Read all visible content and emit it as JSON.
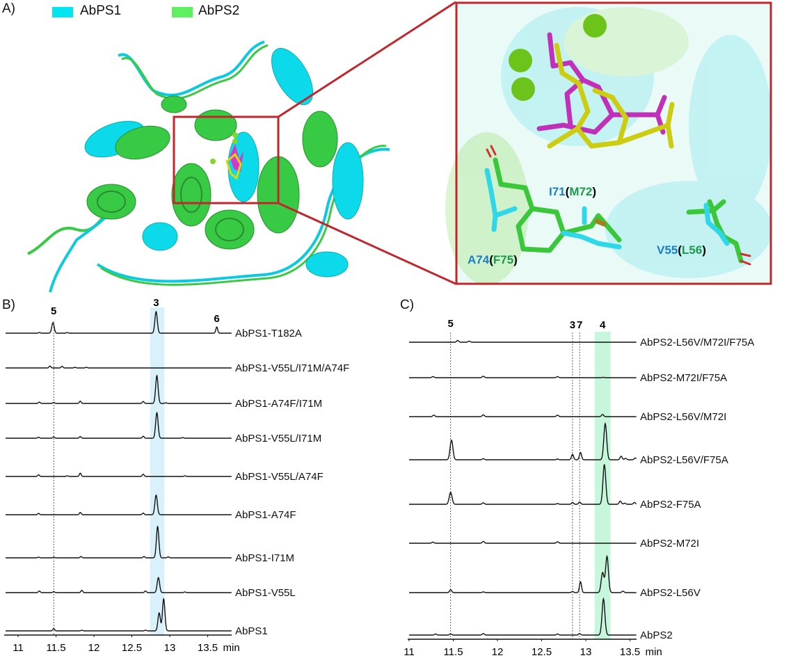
{
  "panel_a": {
    "label": "A)",
    "legend": [
      {
        "name": "AbPS1",
        "color": "#00e5f0"
      },
      {
        "name": "AbPS2",
        "color": "#5ef060"
      }
    ],
    "inset_labels": [
      {
        "first": "I71",
        "open": "(",
        "second": "M72",
        "close": ")"
      },
      {
        "first": "A74",
        "open": "(",
        "second": "F75",
        "close": ")"
      },
      {
        "first": "V55",
        "open": "(",
        "second": "L56",
        "close": ")"
      }
    ],
    "colors": {
      "abps1": "#00d8e8",
      "abps2": "#2ec83a",
      "zoom_box": "#c0272d",
      "ligand_1": "#d62ec8",
      "ligand_2": "#d8d800",
      "ion": "#7ed321",
      "label_blue": "#1a7fc9",
      "label_green": "#1a9a4a"
    }
  },
  "chart_data": [
    {
      "panel_label": "B)",
      "type": "line",
      "xlabel": "min",
      "xlim": [
        10.8,
        13.8
      ],
      "xticks": [
        "11",
        "11.5",
        "12",
        "12.5",
        "13",
        "13.5"
      ],
      "highlight": {
        "range": [
          12.74,
          12.93
        ],
        "color": "#d9f1fb"
      },
      "markers": [
        {
          "label": "5",
          "x": 11.47,
          "dashed": true
        },
        {
          "label": "3",
          "x": 12.82,
          "dashed": false
        },
        {
          "label": "6",
          "x": 13.62,
          "dashed": false
        }
      ],
      "series": [
        {
          "name": "AbPS1-T182A",
          "peaks": [
            [
              11.28,
              0.02
            ],
            [
              11.46,
              0.32
            ],
            [
              11.65,
              0.02
            ],
            [
              12.82,
              0.66
            ],
            [
              13.62,
              0.19
            ]
          ]
        },
        {
          "name": "AbPS1-V55L/I71M/A74F",
          "peaks": [
            [
              11.42,
              0.06
            ],
            [
              11.58,
              0.05
            ],
            [
              11.75,
              0.02
            ],
            [
              11.9,
              0.02
            ]
          ]
        },
        {
          "name": "AbPS1-A74F/I71M",
          "peaks": [
            [
              11.28,
              0.04
            ],
            [
              11.47,
              0.03
            ],
            [
              11.82,
              0.07
            ],
            [
              12.65,
              0.06
            ],
            [
              12.83,
              0.85
            ],
            [
              12.95,
              0.02
            ]
          ]
        },
        {
          "name": "AbPS1-V55L/I71M",
          "peaks": [
            [
              11.27,
              0.03
            ],
            [
              11.47,
              0.04
            ],
            [
              11.82,
              0.05
            ],
            [
              12.65,
              0.06
            ],
            [
              12.83,
              0.78
            ],
            [
              13.17,
              0.02
            ]
          ]
        },
        {
          "name": "AbPS1-V55L/A74F",
          "peaks": [
            [
              11.27,
              0.05
            ],
            [
              11.65,
              0.02
            ],
            [
              11.82,
              0.1
            ],
            [
              12.65,
              0.07
            ],
            [
              13.2,
              0.02
            ]
          ]
        },
        {
          "name": "AbPS1-A74F",
          "peaks": [
            [
              11.27,
              0.04
            ],
            [
              11.82,
              0.07
            ],
            [
              12.65,
              0.05
            ],
            [
              12.82,
              0.6
            ]
          ]
        },
        {
          "name": "AbPS1-I71M",
          "peaks": [
            [
              11.27,
              0.02
            ],
            [
              11.47,
              0.02
            ],
            [
              11.83,
              0.04
            ],
            [
              12.66,
              0.04
            ],
            [
              12.84,
              0.96
            ],
            [
              12.98,
              0.03
            ]
          ]
        },
        {
          "name": "AbPS1-V55L",
          "peaks": [
            [
              11.28,
              0.05
            ],
            [
              11.47,
              0.03
            ],
            [
              11.84,
              0.07
            ],
            [
              12.68,
              0.05
            ],
            [
              12.85,
              0.46
            ],
            [
              13.2,
              0.02
            ]
          ]
        },
        {
          "name": "AbPS1",
          "peaks": [
            [
              11.47,
              0.07
            ],
            [
              11.84,
              0.02
            ],
            [
              12.68,
              0.02
            ],
            [
              12.86,
              0.55
            ],
            [
              12.92,
              0.98
            ]
          ]
        }
      ]
    },
    {
      "panel_label": "C)",
      "type": "line",
      "xlabel": "min",
      "xlim": [
        10.98,
        13.58
      ],
      "xticks": [
        "11",
        "11.5",
        "12",
        "12.5",
        "13",
        "13.5"
      ],
      "highlight": {
        "range": [
          13.1,
          13.28
        ],
        "color": "#c6f7dc"
      },
      "markers": [
        {
          "label": "5",
          "x": 11.47,
          "dashed": true
        },
        {
          "label": "3",
          "x": 12.85,
          "dashed": true
        },
        {
          "label": "7",
          "x": 12.93,
          "dashed": true
        },
        {
          "label": "4",
          "x": 13.19,
          "dashed": false
        }
      ],
      "series": [
        {
          "name": "AbPS2-L56V/M72I/F75A",
          "peaks": [
            [
              11.55,
              0.05
            ],
            [
              11.68,
              0.03
            ]
          ]
        },
        {
          "name": "AbPS2-M72I/F75A",
          "peaks": [
            [
              11.27,
              0.03
            ],
            [
              11.84,
              0.04
            ],
            [
              12.68,
              0.03
            ],
            [
              13.2,
              0.01
            ]
          ]
        },
        {
          "name": "AbPS2-L56V/M72I",
          "peaks": [
            [
              11.28,
              0.04
            ],
            [
              11.84,
              0.05
            ],
            [
              12.68,
              0.04
            ],
            [
              13.19,
              0.06
            ]
          ]
        },
        {
          "name": "AbPS2-L56V/F75A",
          "peaks": [
            [
              11.48,
              0.54
            ],
            [
              11.84,
              0.03
            ],
            [
              12.68,
              0.02
            ],
            [
              12.85,
              0.15
            ],
            [
              12.94,
              0.2
            ],
            [
              13.22,
              1.0
            ],
            [
              13.4,
              0.1
            ],
            [
              13.45,
              0.04
            ],
            [
              13.56,
              0.05
            ]
          ]
        },
        {
          "name": "AbPS2-F75A",
          "peaks": [
            [
              11.47,
              0.33
            ],
            [
              11.84,
              0.04
            ],
            [
              12.68,
              0.02
            ],
            [
              12.85,
              0.05
            ],
            [
              12.93,
              0.06
            ],
            [
              13.21,
              1.1
            ],
            [
              13.39,
              0.09
            ],
            [
              13.44,
              0.03
            ],
            [
              13.55,
              0.05
            ]
          ]
        },
        {
          "name": "AbPS2-M72I",
          "peaks": [
            [
              11.27,
              0.03
            ],
            [
              11.84,
              0.05
            ],
            [
              12.68,
              0.04
            ]
          ]
        },
        {
          "name": "AbPS2-L56V",
          "peaks": [
            [
              11.47,
              0.08
            ],
            [
              11.84,
              0.02
            ],
            [
              12.85,
              0.03
            ],
            [
              12.94,
              0.3
            ],
            [
              13.19,
              0.55
            ],
            [
              13.24,
              1.0
            ],
            [
              13.42,
              0.04
            ]
          ]
        },
        {
          "name": "AbPS2",
          "peaks": [
            [
              11.3,
              0.03
            ],
            [
              11.47,
              0.03
            ],
            [
              11.84,
              0.04
            ],
            [
              12.68,
              0.03
            ],
            [
              12.93,
              0.04
            ],
            [
              13.2,
              1.0
            ]
          ]
        }
      ]
    }
  ]
}
